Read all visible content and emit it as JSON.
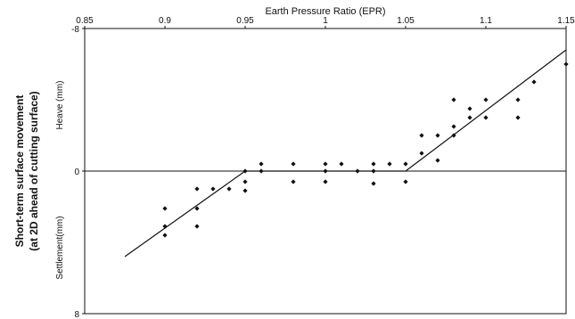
{
  "chart_data": {
    "type": "scatter",
    "title": "",
    "xlabel": "Earth Pressure Ratio (EPR)",
    "ylabel": [
      "Short-term surface movement",
      "(at 2D ahead of cutting surface)"
    ],
    "y_side_labels": {
      "upper": "Heave (mm)",
      "lower": "Settlement(mm)"
    },
    "xlim": [
      0.85,
      1.15
    ],
    "ylim": [
      8,
      -8
    ],
    "x_ticks": [
      0.85,
      0.9,
      0.95,
      1,
      1.05,
      1.1,
      1.15
    ],
    "x_tick_labels": [
      "0.85",
      "0.9",
      "0.95",
      "1",
      "1.05",
      "1.1",
      "1.15"
    ],
    "y_ticks": [
      -8,
      0,
      8
    ],
    "y_tick_labels": [
      "-8",
      "0",
      "8"
    ],
    "x_axis_position": "top",
    "grid": false,
    "points": [
      {
        "x": 0.9,
        "y": 2.1
      },
      {
        "x": 0.9,
        "y": 3.1
      },
      {
        "x": 0.9,
        "y": 3.6
      },
      {
        "x": 0.92,
        "y": 1.0
      },
      {
        "x": 0.92,
        "y": 2.1
      },
      {
        "x": 0.92,
        "y": 3.1
      },
      {
        "x": 0.93,
        "y": 1.0
      },
      {
        "x": 0.94,
        "y": 1.0
      },
      {
        "x": 0.95,
        "y": 0.0
      },
      {
        "x": 0.95,
        "y": 0.6
      },
      {
        "x": 0.95,
        "y": 1.1
      },
      {
        "x": 0.96,
        "y": -0.4
      },
      {
        "x": 0.96,
        "y": 0.0
      },
      {
        "x": 0.98,
        "y": -0.4
      },
      {
        "x": 0.98,
        "y": 0.6
      },
      {
        "x": 1.0,
        "y": -0.4
      },
      {
        "x": 1.0,
        "y": 0.0
      },
      {
        "x": 1.0,
        "y": 0.6
      },
      {
        "x": 1.01,
        "y": -0.4
      },
      {
        "x": 1.02,
        "y": 0.0
      },
      {
        "x": 1.03,
        "y": -0.4
      },
      {
        "x": 1.03,
        "y": 0.0
      },
      {
        "x": 1.03,
        "y": 0.7
      },
      {
        "x": 1.04,
        "y": -0.4
      },
      {
        "x": 1.05,
        "y": -0.4
      },
      {
        "x": 1.05,
        "y": 0.6
      },
      {
        "x": 1.06,
        "y": -1.0
      },
      {
        "x": 1.06,
        "y": -2.0
      },
      {
        "x": 1.07,
        "y": -0.6
      },
      {
        "x": 1.07,
        "y": -2.0
      },
      {
        "x": 1.08,
        "y": -2.0
      },
      {
        "x": 1.08,
        "y": -2.5
      },
      {
        "x": 1.08,
        "y": -4.0
      },
      {
        "x": 1.09,
        "y": -3.0
      },
      {
        "x": 1.09,
        "y": -3.5
      },
      {
        "x": 1.1,
        "y": -3.0
      },
      {
        "x": 1.1,
        "y": -4.0
      },
      {
        "x": 1.12,
        "y": -3.0
      },
      {
        "x": 1.12,
        "y": -4.0
      },
      {
        "x": 1.13,
        "y": -5.0
      },
      {
        "x": 1.15,
        "y": -6.0
      }
    ],
    "trend_line": [
      {
        "x": 0.875,
        "y": 4.8
      },
      {
        "x": 0.95,
        "y": 0.0
      },
      {
        "x": 1.05,
        "y": 0.0
      },
      {
        "x": 1.15,
        "y": -6.8
      }
    ]
  }
}
